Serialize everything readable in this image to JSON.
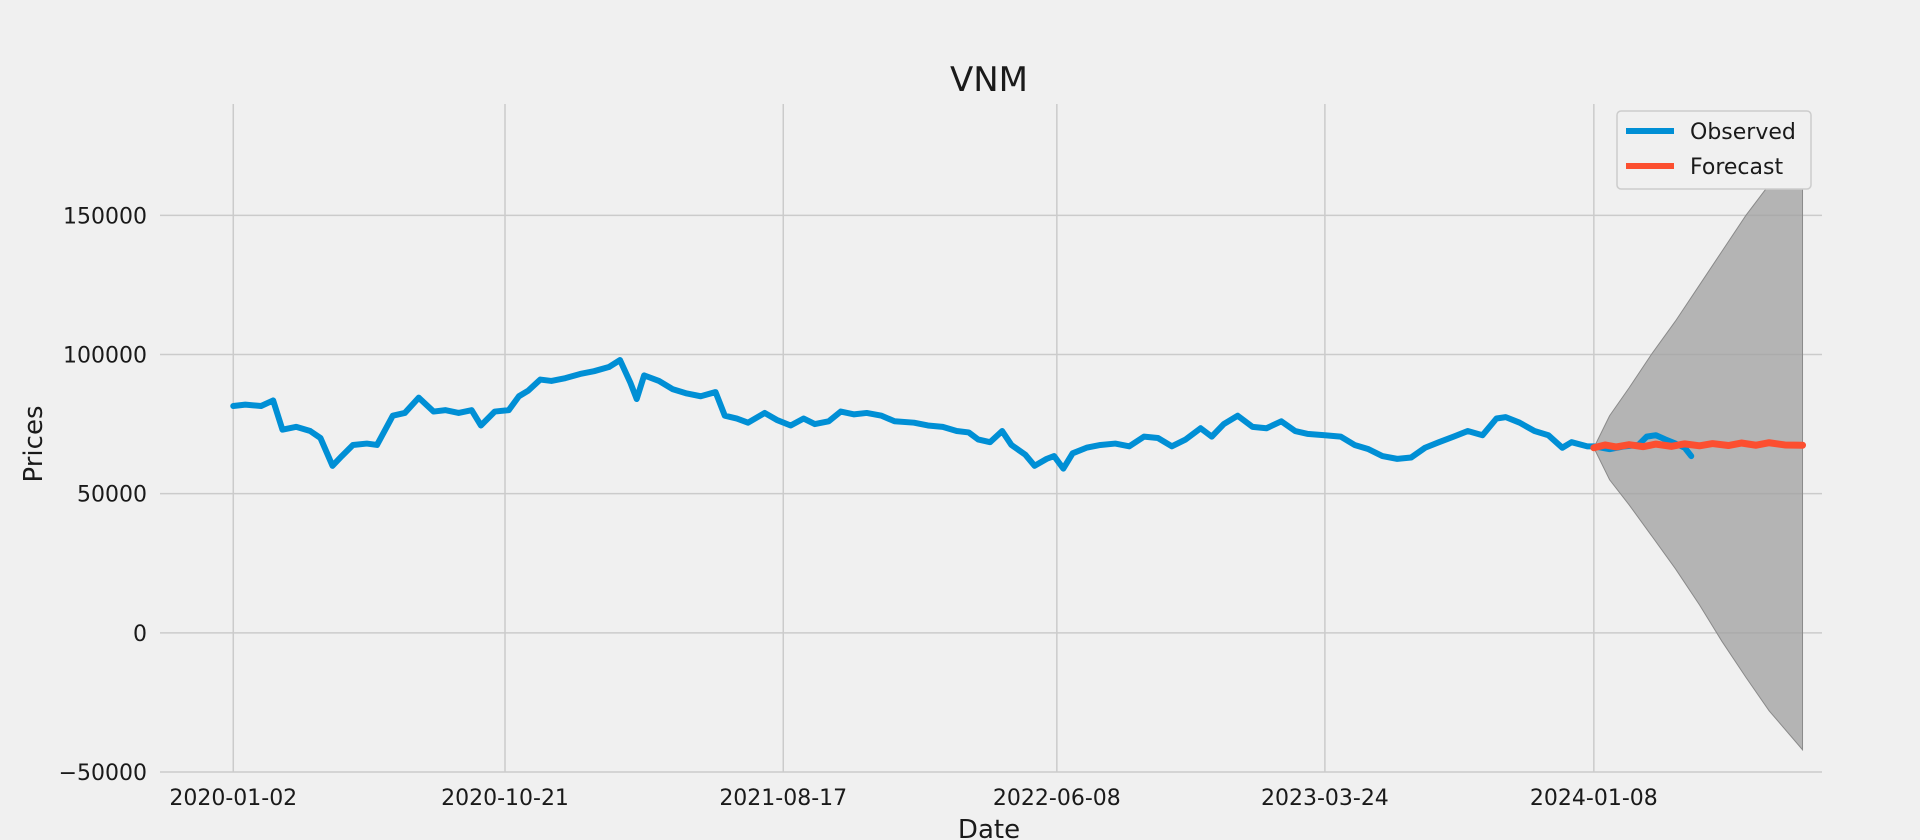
{
  "chart_data": {
    "type": "line",
    "title": "VNM",
    "xlabel": "Date",
    "ylabel": "Prices",
    "xlim": [
      "2019-10-15",
      "2024-09-10"
    ],
    "ylim": [
      -50000,
      190000
    ],
    "x_ticks": [
      "2020-01-02",
      "2020-10-21",
      "2021-08-17",
      "2022-06-08",
      "2023-03-24",
      "2024-01-08"
    ],
    "y_ticks": [
      -50000,
      0,
      50000,
      100000,
      150000
    ],
    "y_tick_labels": [
      "−50000",
      "0",
      "50000",
      "100000",
      "150000"
    ],
    "grid": true,
    "legend_position": "top-right",
    "series": [
      {
        "name": "Observed",
        "color": "#008fd5",
        "points": [
          [
            "2020-01-02",
            81500
          ],
          [
            "2020-01-15",
            82000
          ],
          [
            "2020-02-01",
            81500
          ],
          [
            "2020-02-14",
            83500
          ],
          [
            "2020-02-24",
            73000
          ],
          [
            "2020-03-10",
            74000
          ],
          [
            "2020-03-25",
            72500
          ],
          [
            "2020-04-05",
            70000
          ],
          [
            "2020-04-18",
            60000
          ],
          [
            "2020-04-28",
            63500
          ],
          [
            "2020-05-10",
            67500
          ],
          [
            "2020-05-25",
            68000
          ],
          [
            "2020-06-05",
            67500
          ],
          [
            "2020-06-22",
            78000
          ],
          [
            "2020-07-05",
            79000
          ],
          [
            "2020-07-20",
            84500
          ],
          [
            "2020-08-05",
            79500
          ],
          [
            "2020-08-18",
            80000
          ],
          [
            "2020-09-01",
            79000
          ],
          [
            "2020-09-15",
            80000
          ],
          [
            "2020-09-25",
            74500
          ],
          [
            "2020-10-10",
            79500
          ],
          [
            "2020-10-25",
            80000
          ],
          [
            "2020-11-05",
            85000
          ],
          [
            "2020-11-15",
            87000
          ],
          [
            "2020-11-28",
            91000
          ],
          [
            "2020-12-10",
            90500
          ],
          [
            "2020-12-25",
            91500
          ],
          [
            "2021-01-10",
            93000
          ],
          [
            "2021-01-25",
            94000
          ],
          [
            "2021-02-10",
            95500
          ],
          [
            "2021-02-22",
            98000
          ],
          [
            "2021-03-05",
            90000
          ],
          [
            "2021-03-12",
            84000
          ],
          [
            "2021-03-20",
            92500
          ],
          [
            "2021-04-05",
            90500
          ],
          [
            "2021-04-20",
            87500
          ],
          [
            "2021-05-05",
            86000
          ],
          [
            "2021-05-20",
            85000
          ],
          [
            "2021-06-05",
            86500
          ],
          [
            "2021-06-15",
            78000
          ],
          [
            "2021-06-28",
            77000
          ],
          [
            "2021-07-10",
            75500
          ],
          [
            "2021-07-28",
            79000
          ],
          [
            "2021-08-10",
            76500
          ],
          [
            "2021-08-25",
            74500
          ],
          [
            "2021-09-08",
            77000
          ],
          [
            "2021-09-20",
            75000
          ],
          [
            "2021-10-05",
            76000
          ],
          [
            "2021-10-18",
            79500
          ],
          [
            "2021-11-01",
            78500
          ],
          [
            "2021-11-15",
            79000
          ],
          [
            "2021-12-01",
            78000
          ],
          [
            "2021-12-15",
            76000
          ],
          [
            "2022-01-05",
            75500
          ],
          [
            "2022-01-20",
            74500
          ],
          [
            "2022-02-05",
            74000
          ],
          [
            "2022-02-20",
            72500
          ],
          [
            "2022-03-05",
            72000
          ],
          [
            "2022-03-15",
            69500
          ],
          [
            "2022-03-28",
            68500
          ],
          [
            "2022-04-10",
            72500
          ],
          [
            "2022-04-20",
            67500
          ],
          [
            "2022-05-05",
            64000
          ],
          [
            "2022-05-15",
            60000
          ],
          [
            "2022-05-28",
            62500
          ],
          [
            "2022-06-05",
            63500
          ],
          [
            "2022-06-15",
            59000
          ],
          [
            "2022-06-25",
            64500
          ],
          [
            "2022-07-10",
            66500
          ],
          [
            "2022-07-25",
            67500
          ],
          [
            "2022-08-10",
            68000
          ],
          [
            "2022-08-25",
            67000
          ],
          [
            "2022-09-10",
            70500
          ],
          [
            "2022-09-25",
            70000
          ],
          [
            "2022-10-10",
            67000
          ],
          [
            "2022-10-25",
            69500
          ],
          [
            "2022-11-10",
            73500
          ],
          [
            "2022-11-22",
            70500
          ],
          [
            "2022-12-05",
            75000
          ],
          [
            "2022-12-20",
            78000
          ],
          [
            "2023-01-05",
            74000
          ],
          [
            "2023-01-20",
            73500
          ],
          [
            "2023-02-05",
            76000
          ],
          [
            "2023-02-20",
            72500
          ],
          [
            "2023-03-05",
            71500
          ],
          [
            "2023-03-24",
            71000
          ],
          [
            "2023-04-10",
            70500
          ],
          [
            "2023-04-25",
            67500
          ],
          [
            "2023-05-10",
            66000
          ],
          [
            "2023-05-25",
            63500
          ],
          [
            "2023-06-10",
            62500
          ],
          [
            "2023-06-25",
            63000
          ],
          [
            "2023-07-10",
            66500
          ],
          [
            "2023-07-25",
            68500
          ],
          [
            "2023-08-10",
            70500
          ],
          [
            "2023-08-25",
            72500
          ],
          [
            "2023-09-10",
            71000
          ],
          [
            "2023-09-25",
            77000
          ],
          [
            "2023-10-05",
            77500
          ],
          [
            "2023-10-20",
            75500
          ],
          [
            "2023-11-05",
            72500
          ],
          [
            "2023-11-20",
            71000
          ],
          [
            "2023-12-05",
            66500
          ],
          [
            "2023-12-15",
            68500
          ],
          [
            "2024-01-01",
            67000
          ],
          [
            "2024-01-08",
            67000
          ],
          [
            "2024-01-25",
            66000
          ],
          [
            "2024-02-10",
            67000
          ],
          [
            "2024-02-25",
            67500
          ],
          [
            "2024-03-05",
            70500
          ],
          [
            "2024-03-15",
            71000
          ],
          [
            "2024-03-25",
            69500
          ],
          [
            "2024-04-05",
            68000
          ],
          [
            "2024-04-15",
            66500
          ],
          [
            "2024-04-22",
            63500
          ]
        ]
      },
      {
        "name": "Forecast",
        "color": "#fc4f30",
        "points": [
          [
            "2024-01-08",
            66500
          ],
          [
            "2024-01-20",
            67500
          ],
          [
            "2024-02-01",
            66800
          ],
          [
            "2024-02-15",
            67600
          ],
          [
            "2024-03-01",
            66900
          ],
          [
            "2024-03-15",
            67800
          ],
          [
            "2024-04-01",
            67000
          ],
          [
            "2024-04-15",
            67900
          ],
          [
            "2024-05-01",
            67200
          ],
          [
            "2024-05-15",
            68000
          ],
          [
            "2024-06-01",
            67300
          ],
          [
            "2024-06-15",
            68200
          ],
          [
            "2024-07-01",
            67400
          ],
          [
            "2024-07-15",
            68300
          ],
          [
            "2024-08-01",
            67500
          ],
          [
            "2024-08-20",
            67400
          ]
        ]
      }
    ],
    "confidence_band": {
      "color": "#a0a0a0",
      "points": [
        [
          "2024-01-08",
          66500,
          66500
        ],
        [
          "2024-01-25",
          78000,
          55000
        ],
        [
          "2024-02-15",
          88000,
          46000
        ],
        [
          "2024-03-10",
          100000,
          35000
        ],
        [
          "2024-04-05",
          112000,
          23000
        ],
        [
          "2024-05-01",
          125000,
          10000
        ],
        [
          "2024-05-25",
          137000,
          -3000
        ],
        [
          "2024-06-20",
          150000,
          -16000
        ],
        [
          "2024-07-15",
          161000,
          -28000
        ],
        [
          "2024-08-20",
          176000,
          -42000
        ]
      ]
    }
  }
}
